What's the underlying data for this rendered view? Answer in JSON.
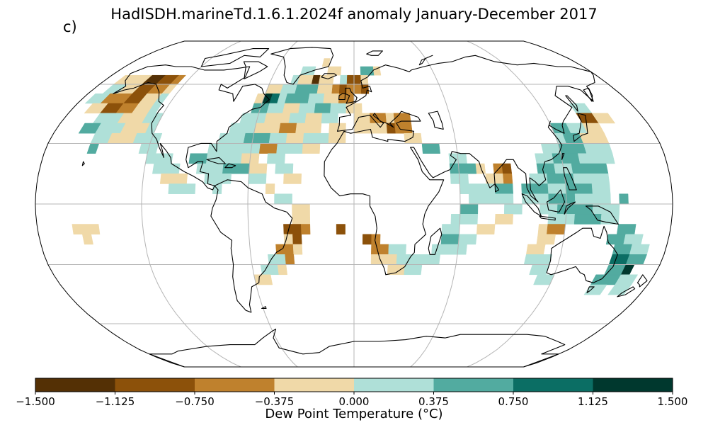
{
  "title": "HadISDH.marineTd.1.6.1.2024f anomaly January-December 2017",
  "panel_label": "c)",
  "colorbar": {
    "label": "Dew Point Temperature (°C)",
    "ticks": [
      "−1.500",
      "−1.125",
      "−0.750",
      "−0.375",
      "0.000",
      "0.375",
      "0.750",
      "1.125",
      "1.500"
    ],
    "tick_values": [
      -1.5,
      -1.125,
      -0.75,
      -0.375,
      0,
      0.375,
      0.75,
      1.125,
      1.5
    ],
    "colors": [
      "#543005",
      "#8c510a",
      "#bf812d",
      "#f0d9a8",
      "#afe0d8",
      "#52aba0",
      "#0b6e64",
      "#00382e"
    ]
  },
  "map": {
    "projection": "Robinson",
    "gridlines": true,
    "cell_size_deg": 5
  }
}
